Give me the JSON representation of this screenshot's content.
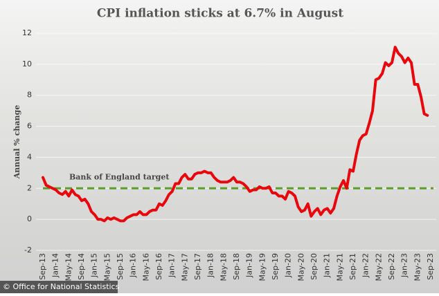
{
  "chart_data": {
    "type": "line",
    "title": "CPI inflation sticks at 6.7% in August",
    "y_label": "Annual % change",
    "source": "© Office for National Statistics",
    "color": "#e8070c",
    "ylim": [
      -2,
      12
    ],
    "yticks": [
      -2,
      0,
      2,
      4,
      6,
      8,
      10,
      12
    ],
    "grid": true,
    "target": {
      "value": 2,
      "label": "Bank of England target",
      "color": "#5a9e2a"
    },
    "categories": [
      "Sep-13",
      null,
      null,
      null,
      "Jan-14",
      null,
      null,
      null,
      "May-14",
      null,
      null,
      null,
      "Sep-14",
      null,
      null,
      null,
      "Jan-15",
      null,
      null,
      null,
      "May-15",
      null,
      null,
      null,
      "Sep-15",
      null,
      null,
      null,
      "Jan-16",
      null,
      null,
      null,
      "May-16",
      null,
      null,
      null,
      "Sep-16",
      null,
      null,
      null,
      "Jan-17",
      null,
      null,
      null,
      "May-17",
      null,
      null,
      null,
      "Sep-17",
      null,
      null,
      null,
      "Jan-18",
      null,
      null,
      null,
      "May-18",
      null,
      null,
      null,
      "Sep-18",
      null,
      null,
      null,
      "Jan-19",
      null,
      null,
      null,
      "May-19",
      null,
      null,
      null,
      "Sep-19",
      null,
      null,
      null,
      "Jan-20",
      null,
      null,
      null,
      "May-20",
      null,
      null,
      null,
      "Sep-20",
      null,
      null,
      null,
      "Jan-21",
      null,
      null,
      null,
      "May-21",
      null,
      null,
      null,
      "Sep-21",
      null,
      null,
      null,
      "Jan-22",
      null,
      null,
      null,
      "May-22",
      null,
      null,
      null,
      "Sep-22",
      null,
      null,
      null,
      "Jan-23",
      null,
      null,
      null,
      "May-23",
      null,
      null,
      null,
      "Sep-23"
    ],
    "values": [
      2.7,
      2.2,
      2.1,
      2.0,
      1.9,
      1.7,
      1.6,
      1.8,
      1.5,
      1.9,
      1.6,
      1.5,
      1.2,
      1.3,
      1.0,
      0.5,
      0.3,
      0.0,
      0.0,
      -0.1,
      0.1,
      0.0,
      0.1,
      0.0,
      -0.1,
      -0.1,
      0.1,
      0.2,
      0.3,
      0.3,
      0.5,
      0.3,
      0.3,
      0.5,
      0.6,
      0.6,
      1.0,
      0.9,
      1.2,
      1.6,
      1.8,
      2.3,
      2.3,
      2.7,
      2.9,
      2.6,
      2.6,
      2.9,
      3.0,
      3.0,
      3.1,
      3.0,
      3.0,
      2.7,
      2.5,
      2.4,
      2.4,
      2.4,
      2.5,
      2.7,
      2.4,
      2.4,
      2.3,
      2.1,
      1.8,
      1.9,
      1.9,
      2.1,
      2.0,
      2.0,
      2.1,
      1.7,
      1.7,
      1.5,
      1.5,
      1.3,
      1.8,
      1.7,
      1.5,
      0.8,
      0.5,
      0.6,
      1.0,
      0.2,
      0.5,
      0.7,
      0.3,
      0.6,
      0.7,
      0.4,
      0.7,
      1.5,
      2.1,
      2.5,
      2.0,
      3.2,
      3.1,
      4.2,
      5.1,
      5.4,
      5.5,
      6.2,
      7.0,
      9.0,
      9.1,
      9.4,
      10.1,
      9.9,
      10.1,
      11.1,
      10.7,
      10.5,
      10.1,
      10.4,
      10.1,
      8.7,
      8.7,
      7.9,
      6.8,
      6.7,
      null
    ]
  }
}
